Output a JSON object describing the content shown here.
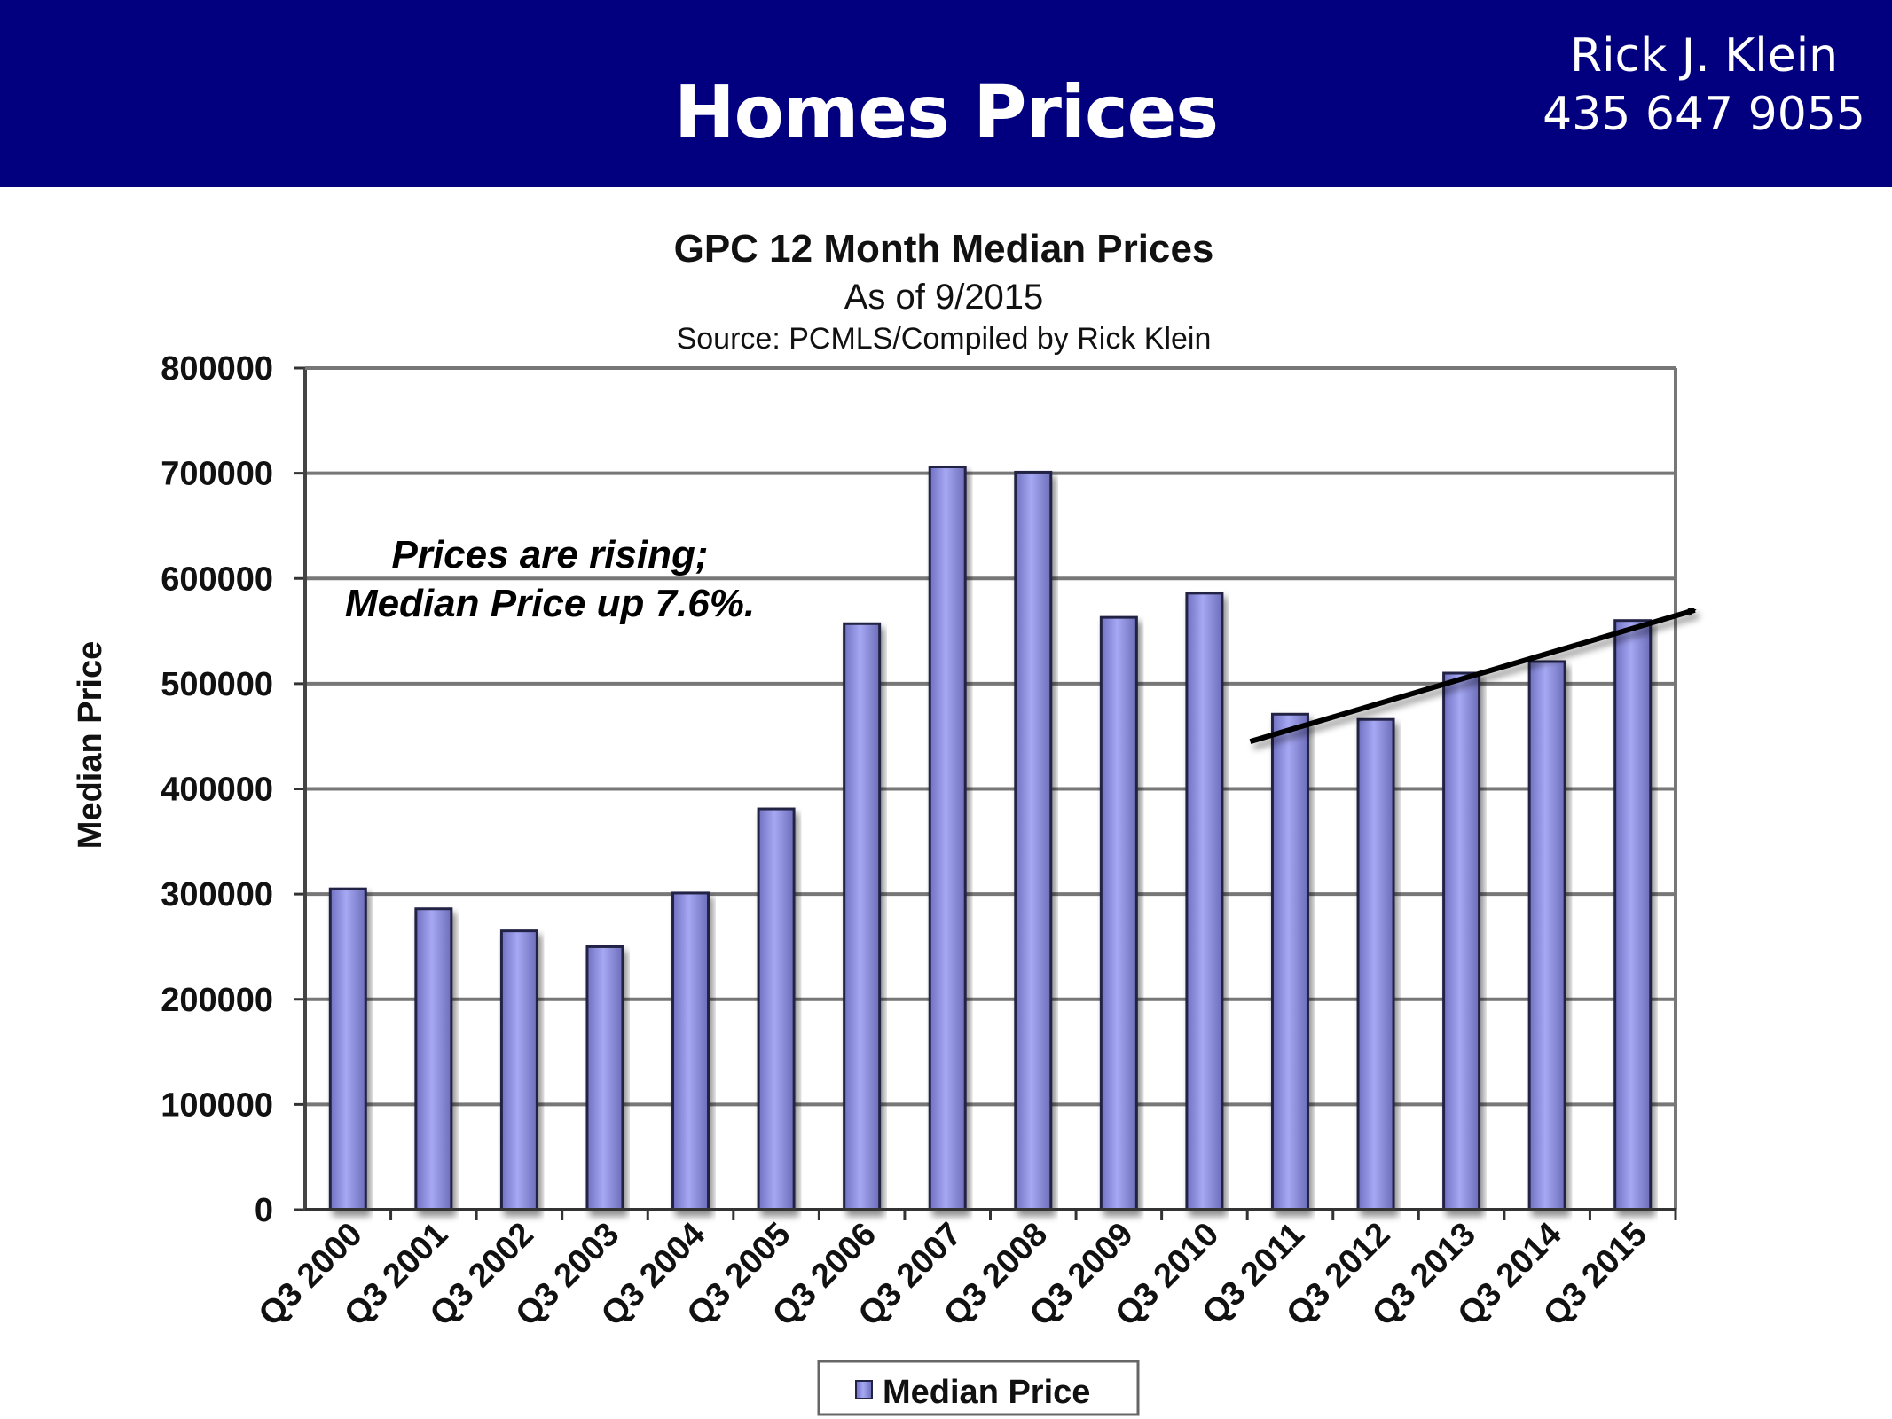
{
  "header": {
    "title": "Homes Prices",
    "name": "Rick J. Klein",
    "phone": "435 647 9055"
  },
  "colors": {
    "header_bg": "#02007f",
    "bar": "#9999ee",
    "bar_border": "#222244"
  },
  "chart_data": {
    "type": "bar",
    "title": "GPC 12 Month Median Prices",
    "subtitle": "As of 9/2015",
    "source": "Source: PCMLS/Compiled by Rick Klein",
    "xlabel": "",
    "ylabel": "Median Price",
    "ylim": [
      0,
      800000
    ],
    "yticks": [
      "0",
      "100000",
      "200000",
      "300000",
      "400000",
      "500000",
      "600000",
      "700000",
      "800000"
    ],
    "grid": true,
    "categories": [
      "Q3 2000",
      "Q3 2001",
      "Q3 2002",
      "Q3 2003",
      "Q3 2004",
      "Q3 2005",
      "Q3 2006",
      "Q3 2007",
      "Q3 2008",
      "Q3 2009",
      "Q3 2010",
      "Q3 2011",
      "Q3 2012",
      "Q3 2013",
      "Q3 2014",
      "Q3 2015"
    ],
    "series": [
      {
        "name": "Median Price",
        "values": [
          305000,
          286000,
          265000,
          250000,
          301000,
          381000,
          557000,
          706000,
          701000,
          563000,
          586000,
          471000,
          466000,
          510000,
          521000,
          560000
        ]
      }
    ],
    "annotation": [
      "Prices are rising;",
      "Median Price up 7.6%."
    ],
    "trend_arrow": {
      "from_category": "Q3 2011",
      "to_category": "Q3 2015",
      "from_value": 445000,
      "to_value": 570000
    },
    "legend": {
      "placement": "bottom",
      "label": "Median Price"
    }
  }
}
